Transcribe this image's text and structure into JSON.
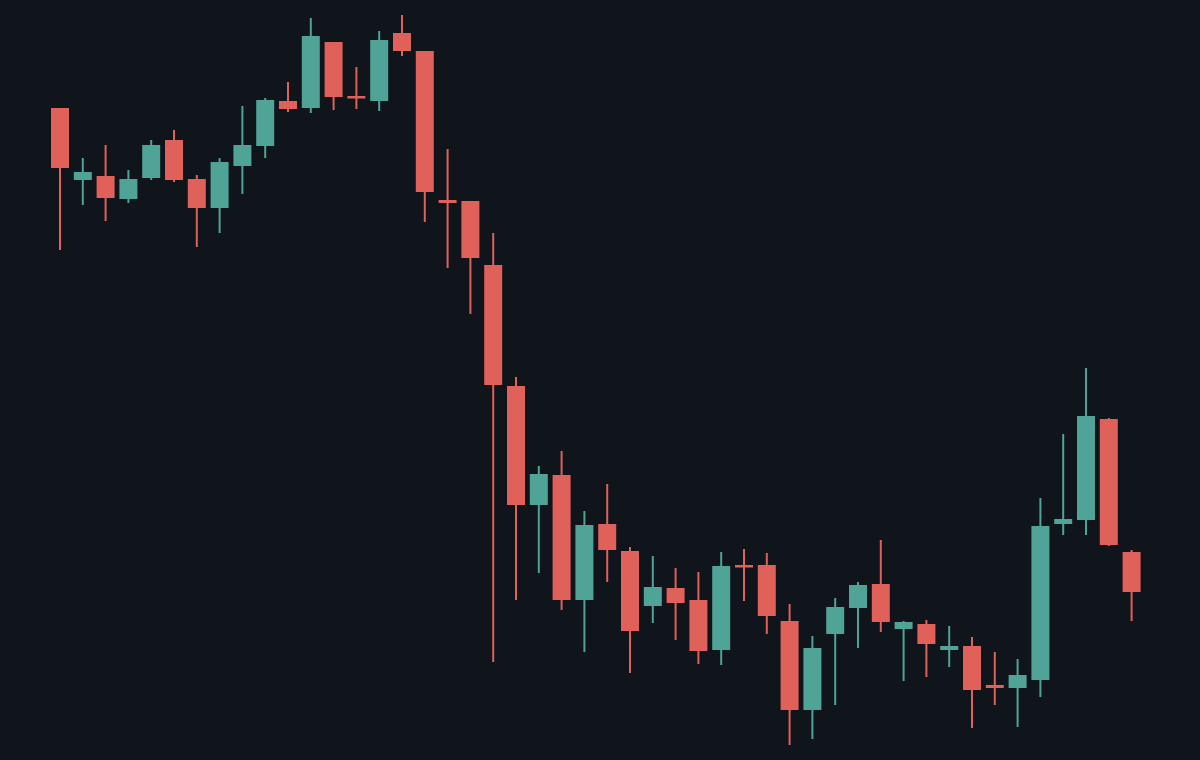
{
  "chart_data": {
    "type": "candlestick",
    "categories": [
      null,
      null,
      null,
      null,
      null,
      null,
      null,
      null,
      null,
      null,
      null,
      null,
      null,
      null,
      null,
      null,
      null,
      null,
      null,
      null,
      null,
      null,
      null,
      null,
      null,
      null,
      null,
      null,
      null,
      null,
      null,
      null,
      null,
      null,
      null,
      null,
      null,
      null,
      null,
      null,
      null,
      null,
      null,
      null,
      null,
      null,
      null,
      null
    ],
    "open": [
      652,
      580,
      584,
      561,
      582,
      620,
      581,
      552,
      594,
      614,
      659,
      652,
      718,
      664,
      659,
      727,
      709,
      560,
      559,
      495,
      374,
      255,
      285,
      160,
      236,
      209,
      154,
      172,
      160,
      110,
      195,
      195,
      139,
      50,
      126,
      152,
      176,
      131,
      136,
      110,
      114,
      75,
      72,
      80,
      236,
      240,
      341,
      208
    ],
    "high": [
      652,
      602,
      615,
      590,
      620,
      630,
      585,
      602,
      654,
      662,
      678,
      742,
      718,
      693,
      729,
      745,
      709,
      611,
      559,
      527,
      383,
      294,
      309,
      249,
      276,
      213,
      204,
      192,
      188,
      208,
      211,
      207,
      156,
      124,
      162,
      178,
      220,
      139,
      140,
      134,
      123,
      108,
      101,
      262,
      326,
      392,
      342,
      210
    ],
    "low": [
      510,
      555,
      539,
      557,
      580,
      578,
      513,
      527,
      566,
      602,
      648,
      647,
      650,
      651,
      649,
      704,
      538,
      492,
      446,
      98,
      160,
      187,
      150,
      108,
      178,
      87,
      137,
      120,
      96,
      95,
      159,
      126,
      15,
      21,
      55,
      112,
      128,
      79,
      83,
      93,
      32,
      55,
      33,
      63,
      225,
      225,
      214,
      139
    ],
    "close": [
      592,
      588,
      562,
      581,
      615,
      580,
      552,
      598,
      615,
      660,
      651,
      724,
      663,
      662,
      720,
      709,
      568,
      557,
      502,
      375,
      255,
      286,
      160,
      235,
      210,
      129,
      173,
      157,
      109,
      194,
      193,
      144,
      50,
      112,
      153,
      175,
      138,
      138,
      116,
      114,
      70,
      72,
      85,
      234,
      241,
      344,
      215,
      168
    ],
    "up_color": "#4fa397",
    "down_color": "#e0605a",
    "background": "#10141b",
    "ylim": [
      0,
      760
    ]
  }
}
